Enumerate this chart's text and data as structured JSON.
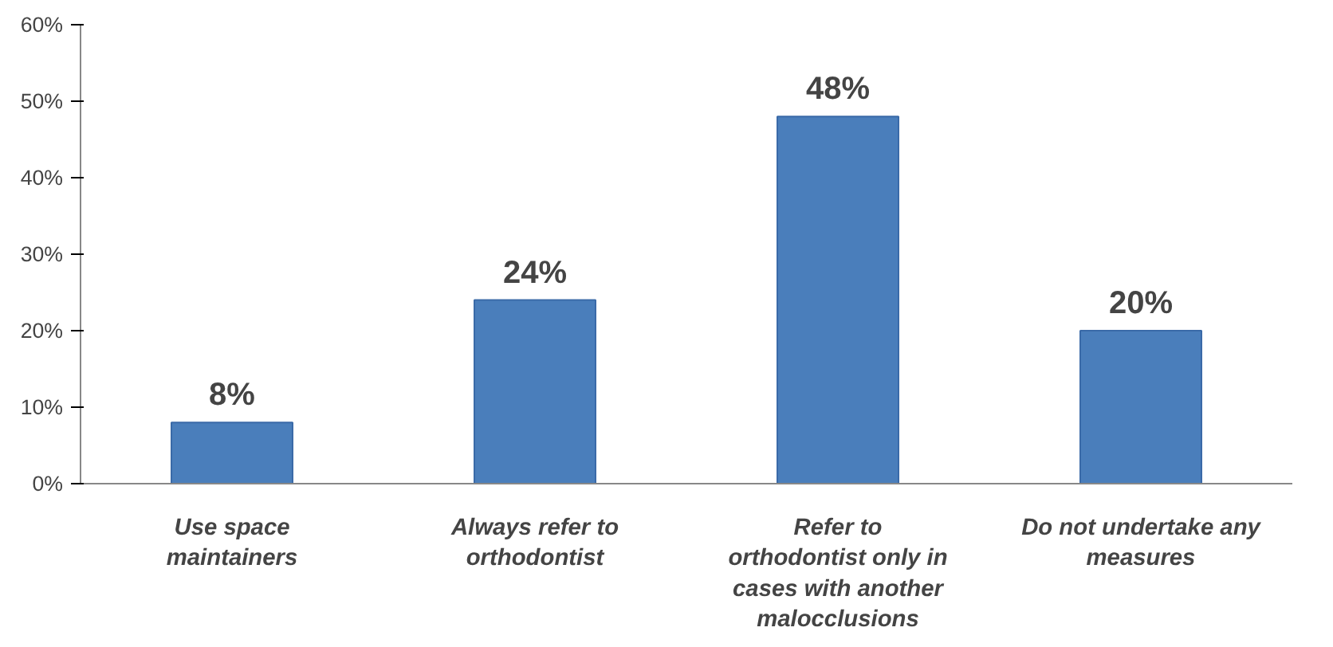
{
  "chart_data": {
    "type": "bar",
    "categories": [
      "Use space maintainers",
      "Always refer to orthodontist",
      "Refer to orthodontist only in cases with another malocclusions",
      "Do not undertake any measures"
    ],
    "values": [
      8,
      24,
      48,
      20
    ],
    "value_labels": [
      "8%",
      "24%",
      "48%",
      "20%"
    ],
    "color": "#4a7ebb",
    "ylim": [
      0,
      60
    ],
    "yticks": [
      {
        "value": 0,
        "label": "0%"
      },
      {
        "value": 10,
        "label": "10%"
      },
      {
        "value": 20,
        "label": "20%"
      },
      {
        "value": 30,
        "label": "30%"
      },
      {
        "value": 40,
        "label": "40%"
      },
      {
        "value": 50,
        "label": "50%"
      },
      {
        "value": 60,
        "label": "60%"
      }
    ],
    "grid": false
  }
}
